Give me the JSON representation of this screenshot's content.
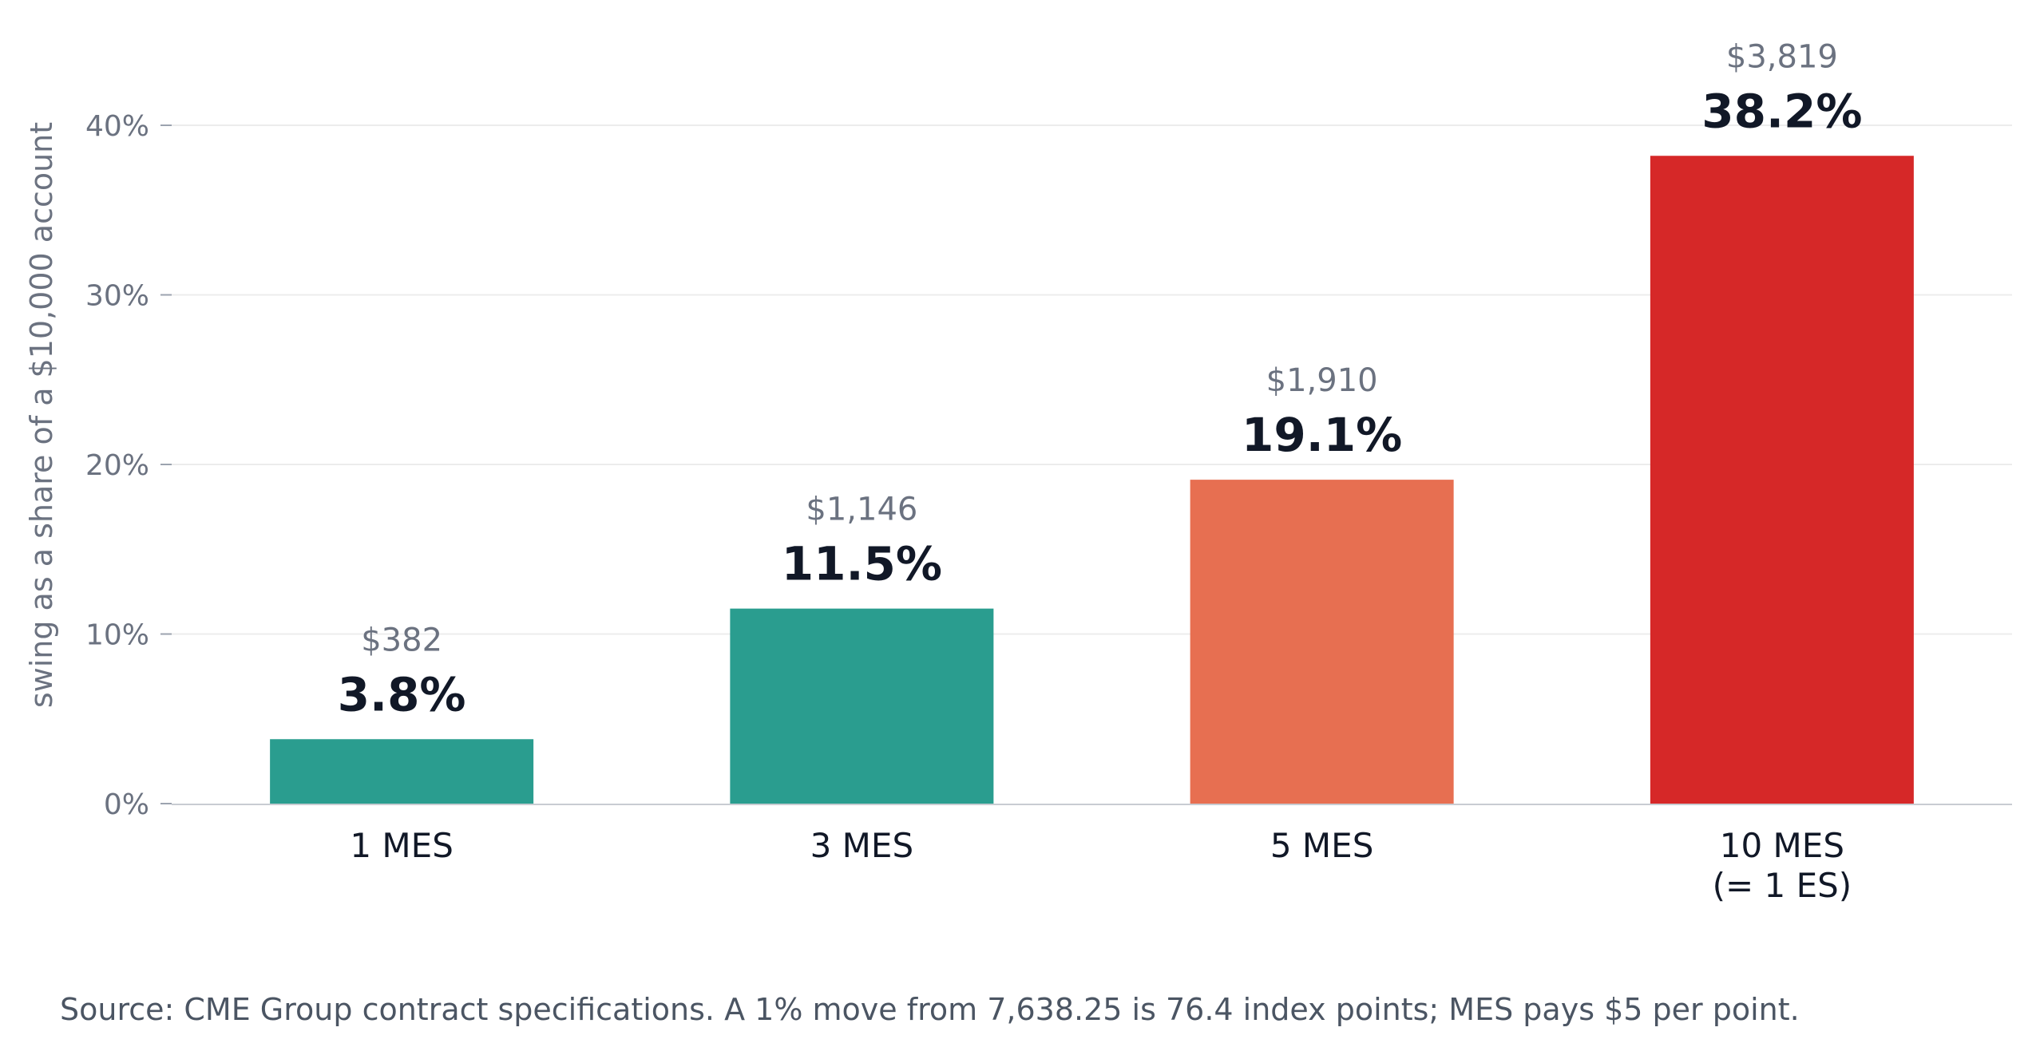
{
  "chart_data": {
    "type": "bar",
    "categories": [
      [
        "1 MES"
      ],
      [
        "3 MES"
      ],
      [
        "5 MES"
      ],
      [
        "10 MES",
        "(= 1 ES)"
      ]
    ],
    "values": [
      3.8,
      11.5,
      19.1,
      38.2
    ],
    "value_labels": [
      "3.8%",
      "11.5%",
      "19.1%",
      "38.2%"
    ],
    "dollar_labels": [
      "$382",
      "$1,146",
      "$1,910",
      "$3,819"
    ],
    "colors": [
      "#2a9d8f",
      "#2a9d8f",
      "#e76f51",
      "#d62828"
    ],
    "ylabel": "swing as a share of a $10,000 account",
    "ylim": [
      0,
      40
    ],
    "yticks": [
      0,
      10,
      20,
      30,
      40
    ],
    "ytick_labels": [
      "0%",
      "10%",
      "20%",
      "30%",
      "40%"
    ],
    "grid": true,
    "source": "Source: CME Group contract specifications. A 1% move from 7,638.25 is 76.4 index points; MES pays $5 per point."
  }
}
